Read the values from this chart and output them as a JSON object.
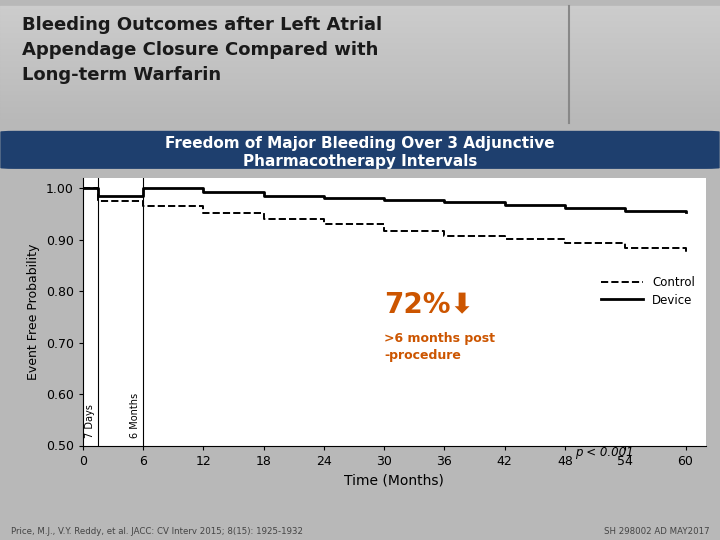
{
  "title_main": "Bleeding Outcomes after Left Atrial\nAppendage Closure Compared with\nLong-term Warfarin",
  "subtitle_line1": "Freedom of Major Bleeding Over 3 Adjunctive",
  "subtitle_line2": "Pharmacotherapy Intervals",
  "subtitle_bg": "#1e3f6e",
  "subtitle_color": "#ffffff",
  "header_bg_top": "#c8c8c8",
  "header_bg_bottom": "#a8a8a8",
  "plot_bg": "#ffffff",
  "outer_bg": "#b8b8b8",
  "ylabel": "Event Free Probability",
  "xlabel": "Time (Months)",
  "ylim": [
    0.5,
    1.02
  ],
  "xlim": [
    0,
    62
  ],
  "yticks": [
    0.5,
    0.6,
    0.7,
    0.8,
    0.9,
    1.0
  ],
  "xticks": [
    0,
    6,
    12,
    18,
    24,
    30,
    36,
    42,
    48,
    54,
    60
  ],
  "vline1_x": 1.5,
  "vline1_label": "7 Days",
  "vline2_x": 6,
  "vline2_label": "6 Months",
  "annotation_pct": "72%",
  "annotation_arrow": "⬇",
  "annotation_sub": ">6 months post\n-procedure",
  "annotation_color": "#cc5500",
  "pvalue": "p < 0.001",
  "footer_left": "Price, M.J., V.Y. Reddy, et al. JACC: CV Interv 2015; 8(15): 1925-1932",
  "footer_right": "SH 298002 AD MAY2017",
  "control_x": [
    0,
    1.5,
    6,
    12,
    18,
    24,
    30,
    36,
    42,
    48,
    54,
    60
  ],
  "control_y": [
    1.0,
    0.975,
    0.965,
    0.953,
    0.94,
    0.93,
    0.918,
    0.908,
    0.902,
    0.893,
    0.885,
    0.875
  ],
  "device_x": [
    0,
    1.5,
    6,
    12,
    18,
    24,
    30,
    36,
    42,
    48,
    54,
    60
  ],
  "device_y": [
    1.0,
    0.985,
    1.0,
    0.993,
    0.985,
    0.982,
    0.978,
    0.973,
    0.968,
    0.962,
    0.957,
    0.955
  ]
}
